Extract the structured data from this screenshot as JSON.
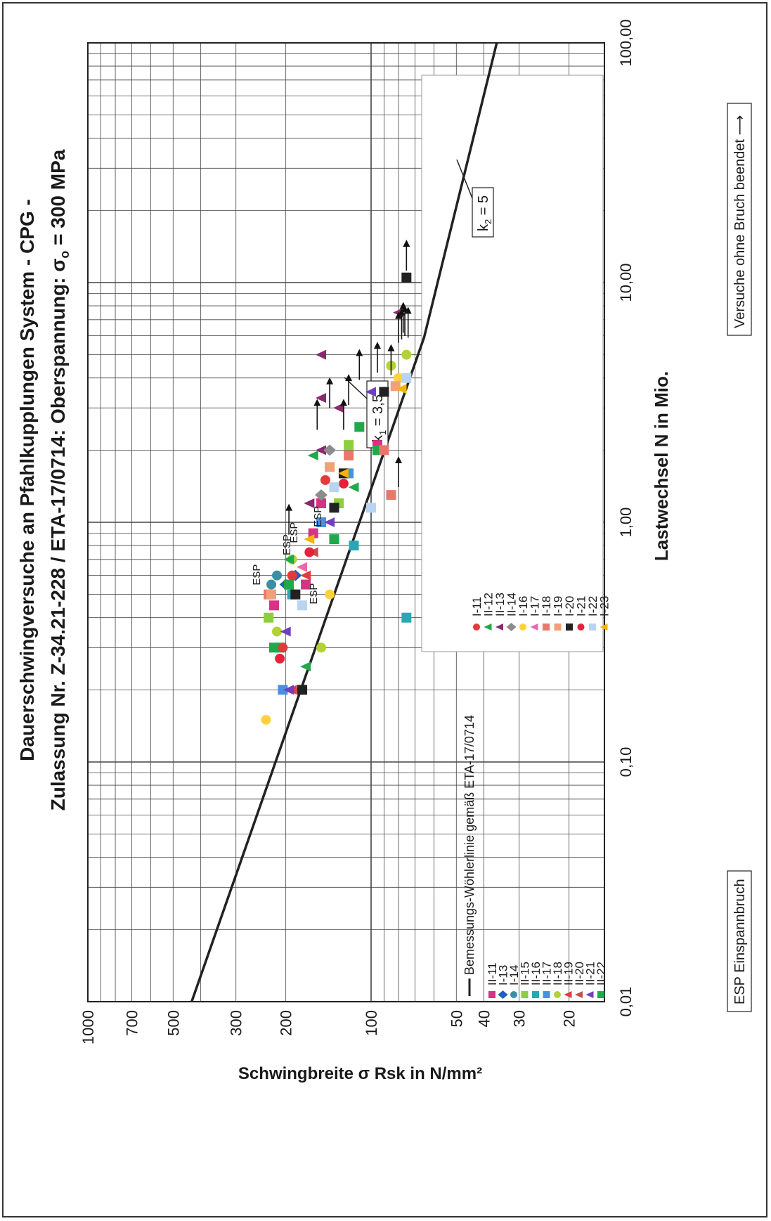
{
  "chart_data": {
    "type": "scatter",
    "title_line1": "Dauerschwingversuche an  Pfahlkupplungen System  - CPG -",
    "title_line2": "Zulassung Nr. Z-34.21-228 / ETA-17/0714: Oberspannung: σ",
    "title_sub": "o",
    "title_tail": " = 300 MPa",
    "xlabel": "Lastwechsel N in Mio.",
    "ylabel": "Schwingbreite σ Rsk in N/mm²",
    "x_scale": "log",
    "y_scale": "log",
    "xlim": [
      0.01,
      100
    ],
    "ylim": [
      15,
      1000
    ],
    "x_ticks": [
      {
        "v": 0.01,
        "label": "0,01"
      },
      {
        "v": 0.1,
        "label": "0,10"
      },
      {
        "v": 1,
        "label": "1,00"
      },
      {
        "v": 10,
        "label": "10,00"
      },
      {
        "v": 100,
        "label": "100,00"
      }
    ],
    "y_ticks": [
      {
        "v": 1000,
        "label": "1000"
      },
      {
        "v": 700,
        "label": "700"
      },
      {
        "v": 500,
        "label": "500"
      },
      {
        "v": 300,
        "label": "300"
      },
      {
        "v": 200,
        "label": "200"
      },
      {
        "v": 100,
        "label": "100"
      },
      {
        "v": 50,
        "label": "50"
      },
      {
        "v": 40,
        "label": "40"
      },
      {
        "v": 30,
        "label": "30"
      },
      {
        "v": 20,
        "label": "20"
      }
    ],
    "grid": true,
    "design_line": {
      "name": "Bemessungs-Wöhlerlinie gemäß ETA-17/0714",
      "points": [
        [
          0.01,
          430
        ],
        [
          5.9,
          65
        ],
        [
          100,
          36
        ]
      ],
      "k1_label": "k",
      "k1_sub": "1",
      "k1_value": " = 3,5",
      "k2_label": "k",
      "k2_sub": "2",
      "k2_value": " = 5"
    },
    "annotations": {
      "runout_box": "Versuche ohne Bruch beendet  ⟶",
      "esp_box": "ESP Einspannbruch",
      "esp_label": "ESP"
    },
    "esp_marks": [
      [
        0.6,
        230
      ],
      [
        0.8,
        180
      ],
      [
        0.5,
        145
      ],
      [
        1.05,
        140
      ],
      [
        0.9,
        170
      ]
    ],
    "series": [
      {
        "name": "II-11",
        "marker": "square",
        "color": "#d63384",
        "points": [
          [
            0.45,
            220
          ],
          [
            0.9,
            160
          ],
          [
            1.2,
            150
          ],
          [
            2.1,
            95
          ],
          [
            0.55,
            170
          ]
        ]
      },
      {
        "name": "I-13",
        "marker": "diamond",
        "color": "#1f5fbf",
        "points": [
          [
            0.55,
            200
          ],
          [
            0.6,
            185
          ]
        ]
      },
      {
        "name": "I-14",
        "marker": "circle",
        "color": "#3a8fa3",
        "points": [
          [
            0.6,
            215
          ],
          [
            0.55,
            225
          ]
        ]
      },
      {
        "name": "II-15",
        "marker": "square",
        "color": "#8ccf3c",
        "points": [
          [
            0.4,
            230
          ],
          [
            1.2,
            130
          ],
          [
            2.1,
            120
          ]
        ]
      },
      {
        "name": "II-16",
        "marker": "square",
        "color": "#2aa6b5",
        "points": [
          [
            0.5,
            190
          ],
          [
            0.8,
            115
          ],
          [
            0.4,
            75
          ]
        ]
      },
      {
        "name": "II-17",
        "marker": "square",
        "color": "#4a90e2",
        "points": [
          [
            0.2,
            205
          ],
          [
            1.0,
            150
          ],
          [
            1.6,
            120
          ]
        ]
      },
      {
        "name": "II-18",
        "marker": "circle",
        "color": "#b2d235",
        "points": [
          [
            0.35,
            215
          ],
          [
            0.7,
            190
          ],
          [
            0.3,
            150
          ],
          [
            4.5,
            85
          ],
          [
            5.0,
            75
          ]
        ]
      },
      {
        "name": "II-19",
        "marker": "triangle",
        "color": "#e23b3b",
        "points": [
          [
            0.6,
            170
          ],
          [
            0.2,
            190
          ]
        ]
      },
      {
        "name": "II-20",
        "marker": "triangle",
        "color": "#c0504d",
        "points": [
          [
            0.75,
            160
          ],
          [
            0.2,
            180
          ]
        ]
      },
      {
        "name": "II-21",
        "marker": "triangle",
        "color": "#6f3fbf",
        "points": [
          [
            0.35,
            200
          ],
          [
            0.2,
            195
          ],
          [
            1.0,
            140
          ],
          [
            3.5,
            100
          ]
        ]
      },
      {
        "name": "II-22",
        "marker": "square",
        "color": "#21a84a",
        "points": [
          [
            0.3,
            220
          ],
          [
            0.3,
            210
          ],
          [
            0.55,
            195
          ],
          [
            0.85,
            135
          ],
          [
            2.5,
            110
          ],
          [
            2.0,
            95
          ]
        ]
      },
      {
        "name": "I-11",
        "marker": "circle",
        "color": "#e23b3b",
        "points": [
          [
            0.3,
            205
          ],
          [
            0.6,
            190
          ],
          [
            1.5,
            145
          ]
        ]
      },
      {
        "name": "II-12",
        "marker": "triangle",
        "color": "#21a84a",
        "points": [
          [
            0.7,
            195
          ],
          [
            1.9,
            160
          ],
          [
            0.25,
            170
          ],
          [
            1.4,
            115
          ]
        ]
      },
      {
        "name": "II-13",
        "marker": "triangle",
        "color": "#8a2a6e",
        "points": [
          [
            1.2,
            165
          ],
          [
            3.0,
            130
          ],
          [
            2.0,
            150
          ],
          [
            3.3,
            150
          ],
          [
            5.0,
            150
          ],
          [
            7.5,
            80
          ]
        ]
      },
      {
        "name": "II-14",
        "marker": "diamond",
        "color": "#8c8c8c",
        "points": [
          [
            1.3,
            150
          ],
          [
            2.0,
            140
          ]
        ]
      },
      {
        "name": "I-16",
        "marker": "circle",
        "color": "#ffd23c",
        "points": [
          [
            0.15,
            235
          ],
          [
            0.5,
            140
          ],
          [
            4.0,
            80
          ]
        ]
      },
      {
        "name": "I-17",
        "marker": "triangle",
        "color": "#e86aa6",
        "points": [
          [
            0.65,
            175
          ],
          [
            1.7,
            140
          ]
        ]
      },
      {
        "name": "I-18",
        "marker": "square",
        "color": "#e8796a",
        "points": [
          [
            0.5,
            230
          ],
          [
            1.9,
            120
          ],
          [
            2.0,
            90
          ],
          [
            1.3,
            85
          ]
        ]
      },
      {
        "name": "I-19",
        "marker": "square",
        "color": "#f2a07a",
        "points": [
          [
            0.5,
            225
          ],
          [
            1.7,
            140
          ],
          [
            3.7,
            82
          ]
        ]
      },
      {
        "name": "I-20",
        "marker": "square",
        "color": "#222222",
        "points": [
          [
            0.5,
            185
          ],
          [
            0.2,
            175
          ],
          [
            1.15,
            135
          ],
          [
            1.6,
            125
          ],
          [
            3.5,
            90
          ],
          [
            10.5,
            75
          ]
        ]
      },
      {
        "name": "I-21",
        "marker": "circle",
        "color": "#e8213a",
        "points": [
          [
            0.27,
            210
          ],
          [
            0.75,
            165
          ],
          [
            1.45,
            125
          ]
        ]
      },
      {
        "name": "I-22",
        "marker": "square",
        "color": "#b8d4f0",
        "points": [
          [
            0.45,
            175
          ],
          [
            1.4,
            135
          ],
          [
            1.15,
            100
          ],
          [
            4.0,
            75
          ]
        ]
      },
      {
        "name": "I-23",
        "marker": "triangle",
        "color": "#f5b400",
        "points": [
          [
            0.85,
            165
          ],
          [
            1.6,
            125
          ],
          [
            3.6,
            78
          ]
        ]
      }
    ],
    "runouts": [
      [
        0.95,
        195
      ],
      [
        2.6,
        155
      ],
      [
        3.2,
        140
      ],
      [
        2.6,
        125
      ],
      [
        3.3,
        120
      ],
      [
        4.2,
        110
      ],
      [
        4.5,
        95
      ],
      [
        4.4,
        85
      ],
      [
        6.0,
        80
      ],
      [
        6.2,
        78
      ],
      [
        6.4,
        76
      ],
      [
        6.6,
        77
      ],
      [
        6.3,
        74
      ],
      [
        12.0,
        75
      ],
      [
        1.5,
        80
      ]
    ],
    "legend_left": [
      "II-11",
      "I-13",
      "I-14",
      "II-15",
      "II-16",
      "II-17",
      "II-18",
      "II-19",
      "II-20",
      "II-21",
      "II-22"
    ],
    "legend_right": [
      "I-11",
      "II-12",
      "II-13",
      "II-14",
      "I-16",
      "I-17",
      "I-18",
      "I-19",
      "I-20",
      "I-21",
      "I-22",
      "I-23"
    ]
  }
}
